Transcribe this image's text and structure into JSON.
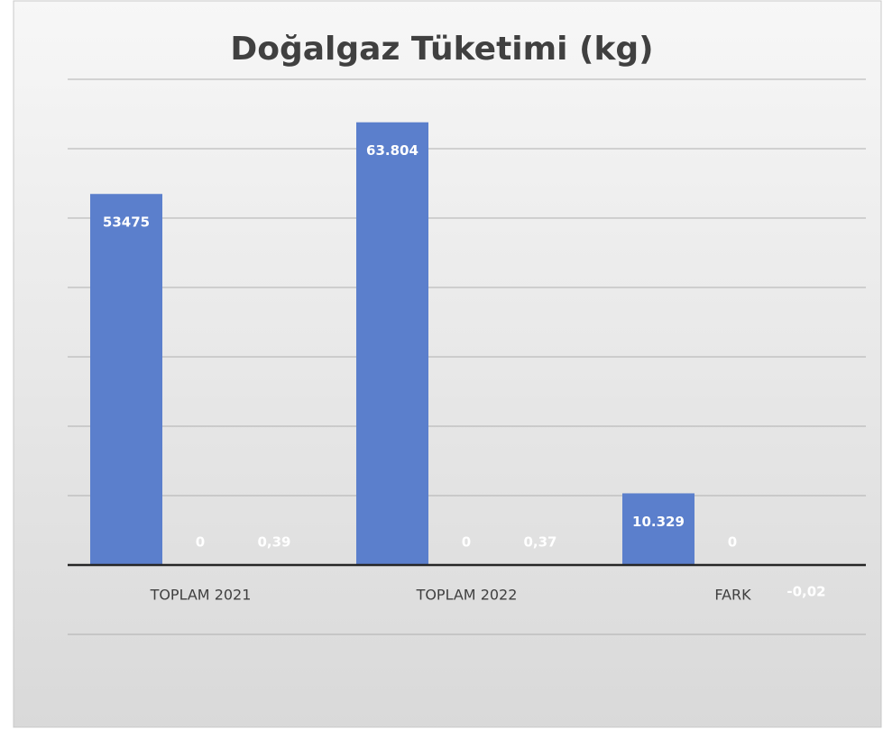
{
  "chart_data": {
    "type": "bar",
    "title": "Doğalgaz Tüketimi (kg)",
    "categories": [
      "TOPLAM 2021",
      "TOPLAM 2022",
      "FARK"
    ],
    "series": [
      {
        "color": "#5b7fcc",
        "values": [
          53475,
          63804,
          10329
        ],
        "value_labels": [
          "53475",
          "63.804",
          "10.329"
        ]
      },
      {
        "color": "#5b7fcc",
        "values": [
          0,
          0,
          0
        ]
      },
      {
        "color": "#5b7fcc",
        "values": [
          0.39,
          0.37,
          -0.02
        ],
        "value_labels": [
          "0,39",
          "0,37",
          "-0,02"
        ]
      }
    ],
    "ylim": [
      -10000,
      70000
    ],
    "yticks": [
      -10000,
      0,
      10000,
      20000,
      30000,
      40000,
      50000,
      60000,
      70000
    ],
    "grid": true
  }
}
